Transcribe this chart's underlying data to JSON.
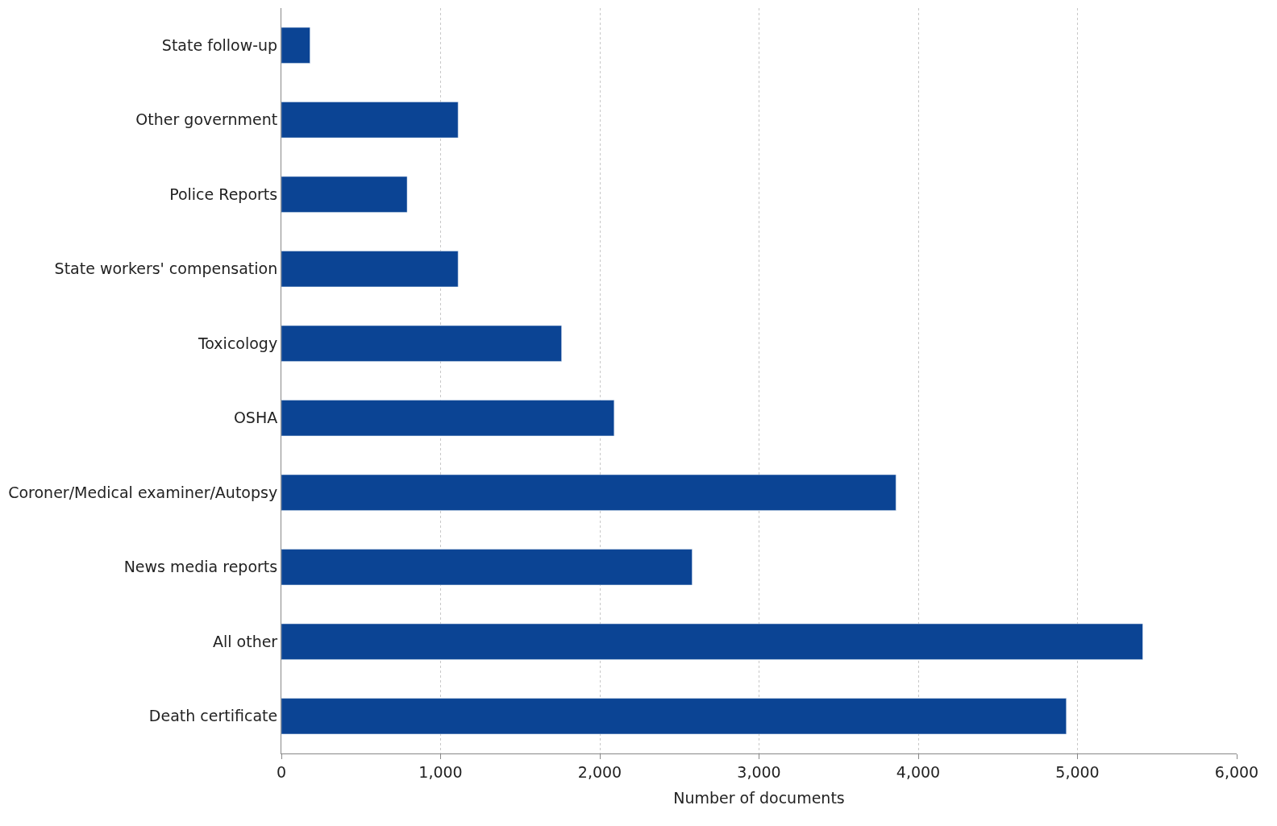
{
  "chart_data": {
    "type": "bar",
    "orientation": "horizontal",
    "xlabel": "Number of documents",
    "categories": [
      "State follow-up",
      "Other government",
      "Police Reports",
      "State workers' compensation",
      "Toxicology",
      "OSHA",
      "Coroner/Medical examiner/Autopsy",
      "News media reports",
      "All other",
      "Death certificate"
    ],
    "values": [
      180,
      1110,
      790,
      1110,
      1760,
      2090,
      3860,
      2580,
      5410,
      4930
    ],
    "color": "#0b4494",
    "xlim": [
      0,
      6000
    ],
    "xticks": [
      0,
      {
        "value": 1000,
        "label": "1,000"
      },
      {
        "value": 2000,
        "label": "2,000"
      },
      {
        "value": 3000,
        "label": "3,000"
      },
      {
        "value": 4000,
        "label": "4,000"
      },
      {
        "value": 5000,
        "label": "5,000"
      },
      {
        "value": 6000,
        "label": "6,000"
      }
    ],
    "grid": "x"
  }
}
